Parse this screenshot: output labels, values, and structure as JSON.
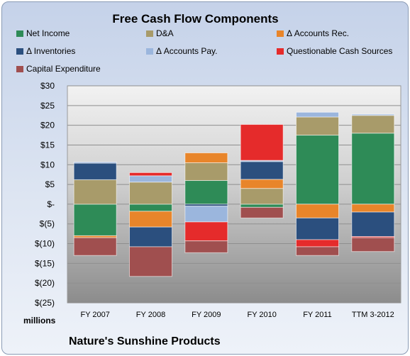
{
  "chart_data": {
    "type": "bar",
    "stacked": true,
    "title": "Free Cash Flow Components",
    "categories": [
      "FY 2007",
      "FY 2008",
      "FY 2009",
      "FY 2010",
      "FY 2011",
      "TTM 3-2012"
    ],
    "ylim": [
      -25,
      30
    ],
    "yticks": [
      30,
      25,
      20,
      15,
      10,
      5,
      0,
      -5,
      -10,
      -15,
      -20,
      -25
    ],
    "ytick_labels": [
      "$30",
      "$25",
      "$20",
      "$15",
      "$10",
      "$5",
      "$-",
      "$(5)",
      "$(10)",
      "$(15)",
      "$(20)",
      "$(25)"
    ],
    "units": "millions",
    "company": "Nature's Sunshine Products",
    "grid": true,
    "legend_position": "top",
    "series": [
      {
        "name": "Net Income",
        "color": "#2e8b57",
        "values": [
          -8.0,
          -1.8,
          6.0,
          -0.8,
          17.5,
          18.0
        ]
      },
      {
        "name": "D&A",
        "color": "#a89b6a",
        "values": [
          6.2,
          5.6,
          4.5,
          4.0,
          4.6,
          4.5
        ]
      },
      {
        "name": "Δ Accounts Rec.",
        "color": "#e8852a",
        "values": [
          -0.5,
          -4.0,
          2.5,
          2.3,
          -3.5,
          -2.0
        ]
      },
      {
        "name": "Δ Inventories",
        "color": "#2b4f7e",
        "values": [
          4.2,
          -5.0,
          -0.5,
          4.5,
          -5.5,
          -6.2
        ]
      },
      {
        "name": "Δ Accounts Pay.",
        "color": "#9bb6dd",
        "values": [
          0.3,
          1.6,
          -4.0,
          0.3,
          1.2,
          0.3
        ]
      },
      {
        "name": "Questionable Cash Sources",
        "color": "#e52b2b",
        "values": [
          0.0,
          0.8,
          -4.8,
          9.1,
          -1.8,
          -0.3
        ]
      },
      {
        "name": "Capital Expenditure",
        "color": "#a04f4f",
        "values": [
          -4.5,
          -7.5,
          -3.0,
          -2.7,
          -2.2,
          -3.5
        ]
      }
    ]
  }
}
